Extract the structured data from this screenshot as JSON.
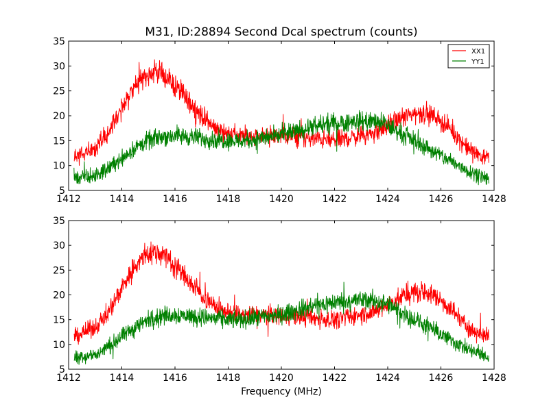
{
  "chart_data": [
    {
      "type": "line",
      "title": "M31, ID:28894 Second Dcal spectrum (counts)",
      "xlabel": "",
      "ylabel": "",
      "xlim": [
        1412,
        1428
      ],
      "ylim": [
        5,
        35
      ],
      "xticks": [
        1412,
        1414,
        1416,
        1418,
        1420,
        1422,
        1424,
        1426,
        1428
      ],
      "yticks": [
        5,
        10,
        15,
        20,
        25,
        30,
        35
      ],
      "legend": {
        "position": "top-right",
        "entries": [
          "XX1",
          "YY1"
        ]
      },
      "grid": false,
      "series": [
        {
          "name": "XX1",
          "color": "#ff0000",
          "x": [
            1412.2,
            1413.0,
            1413.5,
            1414.0,
            1414.5,
            1415.0,
            1415.5,
            1416.0,
            1416.5,
            1417.0,
            1417.5,
            1418.0,
            1418.5,
            1419.0,
            1420.0,
            1421.0,
            1422.0,
            1423.0,
            1423.5,
            1424.0,
            1424.5,
            1425.0,
            1425.5,
            1426.0,
            1426.5,
            1427.0,
            1427.5,
            1427.8
          ],
          "y": [
            11.5,
            13.5,
            16.5,
            21.5,
            26.0,
            28.5,
            28.5,
            26.0,
            23.0,
            20.0,
            17.5,
            16.5,
            16.0,
            16.0,
            16.0,
            15.5,
            15.0,
            16.0,
            16.5,
            18.0,
            19.5,
            20.5,
            20.5,
            19.0,
            16.5,
            13.5,
            12.0,
            11.5
          ]
        },
        {
          "name": "YY1",
          "color": "#008000",
          "x": [
            1412.2,
            1413.0,
            1413.5,
            1414.0,
            1414.5,
            1415.0,
            1415.5,
            1416.0,
            1416.5,
            1417.0,
            1417.5,
            1418.0,
            1418.5,
            1419.0,
            1420.0,
            1421.0,
            1422.0,
            1423.0,
            1423.5,
            1424.0,
            1424.5,
            1425.0,
            1425.5,
            1426.0,
            1426.5,
            1427.0,
            1427.5,
            1427.8
          ],
          "y": [
            7.5,
            7.8,
            9.5,
            11.5,
            13.5,
            15.0,
            15.8,
            16.0,
            15.8,
            15.5,
            15.2,
            15.0,
            15.0,
            15.3,
            16.0,
            17.5,
            18.5,
            19.0,
            18.8,
            18.0,
            16.5,
            15.0,
            13.5,
            12.0,
            10.5,
            9.0,
            8.0,
            7.2
          ]
        }
      ]
    },
    {
      "type": "line",
      "title": "",
      "xlabel": "Frequency (MHz)",
      "ylabel": "",
      "xlim": [
        1412,
        1428
      ],
      "ylim": [
        5,
        35
      ],
      "xticks": [
        1412,
        1414,
        1416,
        1418,
        1420,
        1422,
        1424,
        1426,
        1428
      ],
      "yticks": [
        5,
        10,
        15,
        20,
        25,
        30,
        35
      ],
      "grid": false,
      "series": [
        {
          "color": "#ff0000",
          "x": [
            1412.2,
            1413.0,
            1413.5,
            1414.0,
            1414.5,
            1415.0,
            1415.5,
            1416.0,
            1416.5,
            1417.0,
            1417.5,
            1418.0,
            1418.5,
            1419.0,
            1420.0,
            1421.0,
            1422.0,
            1423.0,
            1423.5,
            1424.0,
            1424.5,
            1425.0,
            1425.5,
            1426.0,
            1426.5,
            1427.0,
            1427.5,
            1427.8
          ],
          "y": [
            11.5,
            13.5,
            16.5,
            21.5,
            26.0,
            28.5,
            28.5,
            26.0,
            23.0,
            20.0,
            17.5,
            16.5,
            16.0,
            16.0,
            16.0,
            15.5,
            15.0,
            16.0,
            16.5,
            18.0,
            19.5,
            20.5,
            20.5,
            19.0,
            16.5,
            13.5,
            12.0,
            11.5
          ]
        },
        {
          "color": "#008000",
          "x": [
            1412.2,
            1413.0,
            1413.5,
            1414.0,
            1414.5,
            1415.0,
            1415.5,
            1416.0,
            1416.5,
            1417.0,
            1417.5,
            1418.0,
            1418.5,
            1419.0,
            1420.0,
            1421.0,
            1422.0,
            1423.0,
            1423.5,
            1424.0,
            1424.5,
            1425.0,
            1425.5,
            1426.0,
            1426.5,
            1427.0,
            1427.5,
            1427.8
          ],
          "y": [
            7.5,
            7.8,
            9.5,
            11.5,
            13.5,
            15.0,
            15.8,
            16.0,
            15.8,
            15.5,
            15.2,
            15.0,
            15.0,
            15.3,
            16.0,
            17.5,
            18.5,
            19.0,
            18.8,
            18.0,
            16.5,
            15.0,
            13.5,
            12.0,
            10.5,
            9.0,
            8.0,
            7.2
          ]
        }
      ]
    }
  ]
}
